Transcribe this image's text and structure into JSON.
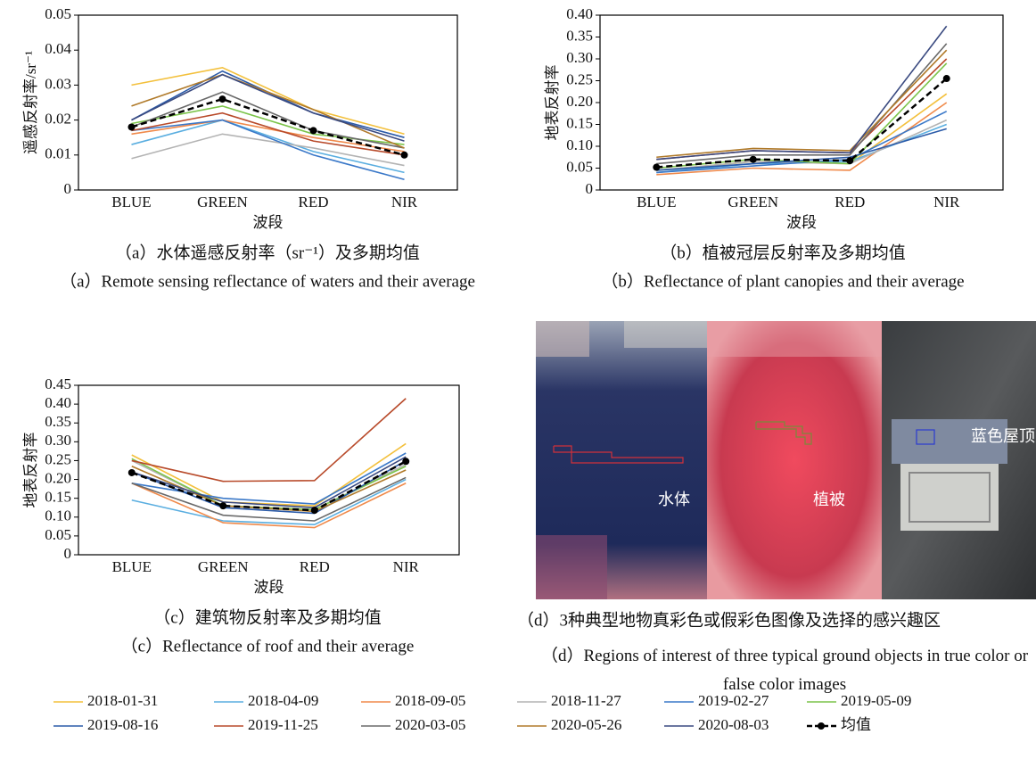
{
  "chart_data": [
    {
      "type": "line",
      "ylabel": "遥感反射率/sr⁻¹",
      "xlabel": "波段",
      "caption": "（a）水体遥感反射率（sr⁻¹）及多期均值",
      "caption_en": "（a）Remote sensing reflectance of waters and their average",
      "categories": [
        "BLUE",
        "GREEN",
        "RED",
        "NIR"
      ],
      "ylim": [
        0,
        0.05
      ],
      "yticks": [
        0,
        0.01,
        0.02,
        0.03,
        0.04,
        0.05
      ],
      "series": [
        {
          "name": "2018-01-31",
          "color": "#f3c03c",
          "values": [
            0.03,
            0.035,
            0.023,
            0.016
          ]
        },
        {
          "name": "2018-04-09",
          "color": "#5aaee0",
          "values": [
            0.013,
            0.02,
            0.011,
            0.005
          ]
        },
        {
          "name": "2018-09-05",
          "color": "#f08a4b",
          "values": [
            0.016,
            0.02,
            0.015,
            0.011
          ]
        },
        {
          "name": "2018-11-27",
          "color": "#b3b3b3",
          "values": [
            0.009,
            0.016,
            0.012,
            0.007
          ]
        },
        {
          "name": "2019-02-27",
          "color": "#3a78c8",
          "values": [
            0.017,
            0.02,
            0.01,
            0.003
          ]
        },
        {
          "name": "2019-05-09",
          "color": "#7cc44a",
          "values": [
            0.019,
            0.024,
            0.016,
            0.013
          ]
        },
        {
          "name": "2019-08-16",
          "color": "#2a5aa8",
          "values": [
            0.02,
            0.034,
            0.022,
            0.015
          ]
        },
        {
          "name": "2019-11-25",
          "color": "#b84a2a",
          "values": [
            0.017,
            0.022,
            0.014,
            0.01
          ]
        },
        {
          "name": "2020-03-05",
          "color": "#6a6a6a",
          "values": [
            0.018,
            0.028,
            0.017,
            0.012
          ]
        },
        {
          "name": "2020-05-26",
          "color": "#b07a2a",
          "values": [
            0.024,
            0.033,
            0.023,
            0.012
          ]
        },
        {
          "name": "2020-08-03",
          "color": "#3a4a80",
          "values": [
            0.02,
            0.033,
            0.022,
            0.014
          ]
        },
        {
          "name": "均值",
          "color": "#000000",
          "style": "dashed",
          "marker": "circle",
          "values": [
            0.018,
            0.026,
            0.017,
            0.01
          ]
        }
      ]
    },
    {
      "type": "line",
      "ylabel": "地表反射率",
      "xlabel": "波段",
      "caption": "（b）植被冠层反射率及多期均值",
      "caption_en": "（b）Reflectance of plant canopies and their average",
      "categories": [
        "BLUE",
        "GREEN",
        "RED",
        "NIR"
      ],
      "ylim": [
        0,
        0.4
      ],
      "yticks": [
        0,
        0.05,
        {
          "value": 0.1,
          "label": "0.10"
        },
        0.15,
        {
          "value": 0.2,
          "label": "0.20"
        },
        0.25,
        {
          "value": 0.3,
          "label": "0.30"
        },
        0.35,
        {
          "value": 0.4,
          "label": "0.40"
        }
      ],
      "series": [
        {
          "name": "2018-01-31",
          "color": "#f3c03c",
          "values": [
            0.045,
            0.065,
            0.06,
            0.22
          ]
        },
        {
          "name": "2018-04-09",
          "color": "#5aaee0",
          "values": [
            0.04,
            0.06,
            0.065,
            0.15
          ]
        },
        {
          "name": "2018-09-05",
          "color": "#f08a4b",
          "values": [
            0.035,
            0.05,
            0.045,
            0.2
          ]
        },
        {
          "name": "2018-11-27",
          "color": "#b3b3b3",
          "values": [
            0.045,
            0.065,
            0.06,
            0.16
          ]
        },
        {
          "name": "2019-02-27",
          "color": "#3a78c8",
          "values": [
            0.04,
            0.055,
            0.07,
            0.18
          ]
        },
        {
          "name": "2019-05-09",
          "color": "#7cc44a",
          "values": [
            0.05,
            0.07,
            0.06,
            0.29
          ]
        },
        {
          "name": "2019-08-16",
          "color": "#2a5aa8",
          "values": [
            0.045,
            0.06,
            0.075,
            0.14
          ]
        },
        {
          "name": "2019-11-25",
          "color": "#b84a2a",
          "values": [
            0.07,
            0.09,
            0.085,
            0.3
          ]
        },
        {
          "name": "2020-03-05",
          "color": "#6a6a6a",
          "values": [
            0.06,
            0.08,
            0.08,
            0.335
          ]
        },
        {
          "name": "2020-05-26",
          "color": "#b07a2a",
          "values": [
            0.075,
            0.095,
            0.09,
            0.32
          ]
        },
        {
          "name": "2020-08-03",
          "color": "#3a4a80",
          "values": [
            0.07,
            0.09,
            0.085,
            0.375
          ]
        },
        {
          "name": "均值",
          "color": "#000000",
          "style": "dashed",
          "marker": "circle",
          "values": [
            0.052,
            0.07,
            0.067,
            0.255
          ]
        }
      ]
    },
    {
      "type": "line",
      "ylabel": "地表反射率",
      "xlabel": "波段",
      "caption": "（c）建筑物反射率及多期均值",
      "caption_en": "（c）Reflectance of roof and their average",
      "categories": [
        "BLUE",
        "GREEN",
        "RED",
        "NIR"
      ],
      "ylim": [
        0,
        0.45
      ],
      "yticks": [
        0,
        0.05,
        {
          "value": 0.1,
          "label": "0.10"
        },
        0.15,
        {
          "value": 0.2,
          "label": "0.20"
        },
        0.25,
        {
          "value": 0.3,
          "label": "0.30"
        },
        0.35,
        {
          "value": 0.4,
          "label": "0.40"
        },
        0.45
      ],
      "series": [
        {
          "name": "2018-01-31",
          "color": "#f3c03c",
          "values": [
            0.265,
            0.14,
            0.13,
            0.295
          ]
        },
        {
          "name": "2018-04-09",
          "color": "#5aaee0",
          "values": [
            0.145,
            0.09,
            0.08,
            0.2
          ]
        },
        {
          "name": "2018-09-05",
          "color": "#f08a4b",
          "values": [
            0.19,
            0.085,
            0.072,
            0.19
          ]
        },
        {
          "name": "2018-11-27",
          "color": "#b3b3b3",
          "values": [
            0.25,
            0.13,
            0.12,
            0.24
          ]
        },
        {
          "name": "2019-02-27",
          "color": "#3a78c8",
          "values": [
            0.19,
            0.15,
            0.135,
            0.27
          ]
        },
        {
          "name": "2019-05-09",
          "color": "#7cc44a",
          "values": [
            0.255,
            0.13,
            0.12,
            0.235
          ]
        },
        {
          "name": "2019-08-16",
          "color": "#2a5aa8",
          "values": [
            0.22,
            0.125,
            0.11,
            0.25
          ]
        },
        {
          "name": "2019-11-25",
          "color": "#b84a2a",
          "values": [
            0.25,
            0.195,
            0.197,
            0.415
          ]
        },
        {
          "name": "2020-03-05",
          "color": "#6a6a6a",
          "values": [
            0.19,
            0.105,
            0.09,
            0.205
          ]
        },
        {
          "name": "2020-05-26",
          "color": "#b07a2a",
          "values": [
            0.235,
            0.13,
            0.115,
            0.225
          ]
        },
        {
          "name": "2020-08-03",
          "color": "#3a4a80",
          "values": [
            0.22,
            0.14,
            0.125,
            0.26
          ]
        },
        {
          "name": "均值",
          "color": "#000000",
          "style": "dashed",
          "marker": "circle",
          "values": [
            0.218,
            0.13,
            0.118,
            0.248
          ]
        }
      ]
    }
  ],
  "image_panel": {
    "labels": [
      "水体",
      "植被",
      "蓝色屋顶"
    ],
    "caption": "（d）3种典型地物真彩色或假彩色图像及选择的感兴趣区",
    "caption_en": "（d）Regions of interest of three typical ground objects in true color or false color images"
  }
}
